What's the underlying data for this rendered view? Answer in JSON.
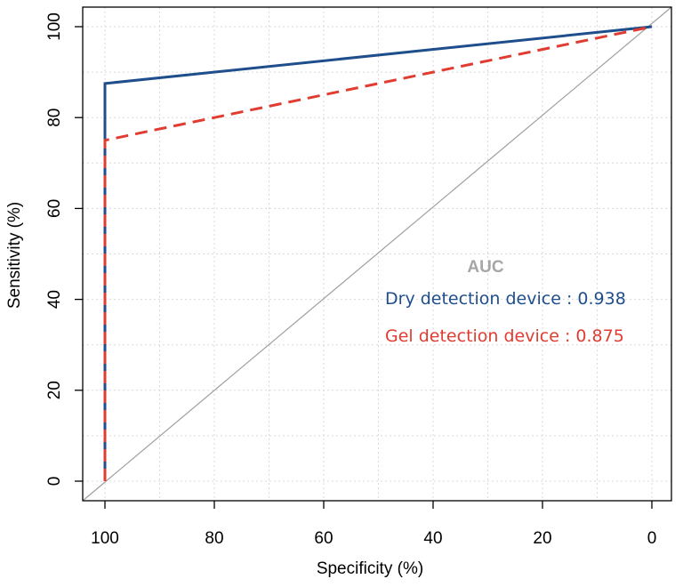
{
  "chart_data": {
    "type": "line",
    "xlabel": "Specificity (%)",
    "ylabel": "Sensitivity (%)",
    "xlim": [
      100,
      0
    ],
    "ylim": [
      0,
      100
    ],
    "x_reversed": true,
    "x_ticks": [
      100,
      80,
      60,
      40,
      20,
      0
    ],
    "y_ticks": [
      0,
      20,
      40,
      60,
      80,
      100
    ],
    "grid": true,
    "diagonal_reference": true,
    "series": [
      {
        "name": "Dry detection device",
        "color": "#1f4e8c",
        "dash": "solid",
        "points": [
          [
            100,
            0
          ],
          [
            100,
            87.5
          ],
          [
            0,
            100
          ]
        ]
      },
      {
        "name": "Gel detection device",
        "color": "#e03c31",
        "dash": "dashed",
        "points": [
          [
            100,
            0
          ],
          [
            100,
            75
          ],
          [
            0,
            100
          ]
        ]
      }
    ],
    "annotation": {
      "title": "AUC",
      "entries": [
        {
          "text": "Dry detection device : 0.938",
          "color": "#1f4e8c"
        },
        {
          "text": "Gel detection device : 0.875",
          "color": "#e03c31"
        }
      ]
    }
  }
}
